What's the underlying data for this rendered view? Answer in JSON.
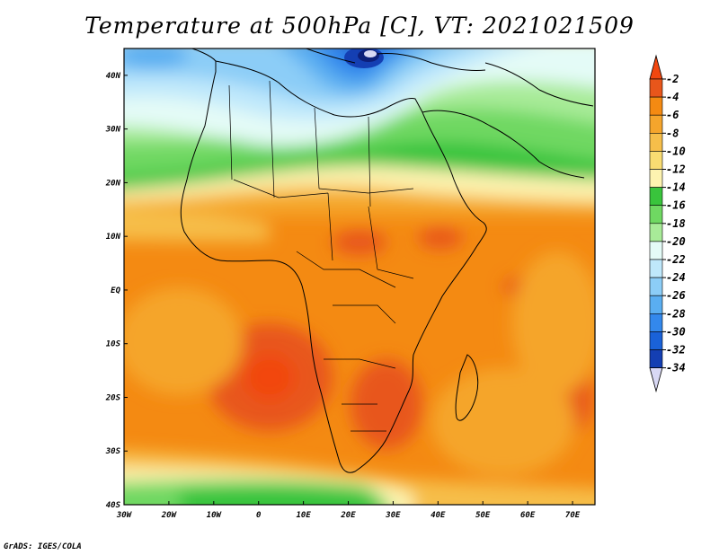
{
  "title": "Temperature at 500hPa [C], VT: 2021021509",
  "credit": "GrADS: IGES/COLA",
  "map": {
    "projection": "lat-lon",
    "lon_range": [
      -30,
      75
    ],
    "lat_range": [
      -40,
      45
    ],
    "lat_ticks": [
      "40N",
      "30N",
      "20N",
      "10N",
      "EQ",
      "10S",
      "20S",
      "30S",
      "40S"
    ],
    "lon_ticks": [
      "30W",
      "20W",
      "10W",
      "0",
      "10E",
      "20E",
      "30E",
      "40E",
      "50E",
      "60E",
      "70E"
    ]
  },
  "colorbar": {
    "labels": [
      "-2",
      "-4",
      "-6",
      "-8",
      "-10",
      "-12",
      "-14",
      "-16",
      "-18",
      "-20",
      "-22",
      "-24",
      "-26",
      "-28",
      "-30",
      "-32",
      "-34"
    ],
    "colors": [
      "#e8561b",
      "#f48a12",
      "#f5a52c",
      "#f6be4a",
      "#f9dc72",
      "#fdf3b0",
      "#39c43c",
      "#6fd862",
      "#a8eb98",
      "#e4fbf7",
      "#bfe8fb",
      "#8ccdf7",
      "#5aaef1",
      "#3388ec",
      "#1a62d8",
      "#143fb3",
      "#0d1f7a"
    ],
    "top_color": "#f2470f",
    "bottom_color": "#d8d8f4"
  }
}
